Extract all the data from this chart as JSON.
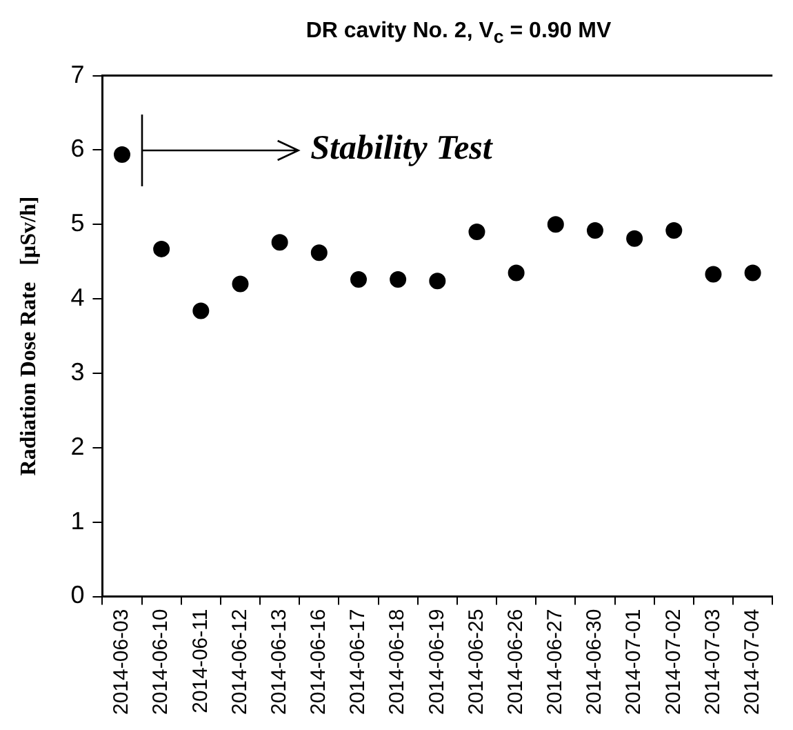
{
  "chart_data": {
    "type": "scatter",
    "title": "DR cavity No. 2,  V$_{c}$ = 0.90 MV",
    "ylabel": "Radiation Dose Rate   [μSv/h]",
    "categories": [
      "2014-06-03",
      "2014-06-10",
      "2014-06-11",
      "2014-06-12",
      "2014-06-13",
      "2014-06-16",
      "2014-06-17",
      "2014-06-18",
      "2014-06-19",
      "2014-06-25",
      "2014-06-26",
      "2014-06-27",
      "2014-06-30",
      "2014-07-01",
      "2014-07-02",
      "2014-07-03",
      "2014-07-04"
    ],
    "values": [
      5.94,
      4.67,
      3.84,
      4.2,
      4.76,
      4.62,
      4.26,
      4.26,
      4.24,
      4.9,
      4.35,
      5.0,
      4.92,
      4.81,
      4.92,
      4.33,
      4.35
    ],
    "color": "#000000",
    "marker": "circle",
    "ylim": [
      0,
      7
    ],
    "yticks": [
      0,
      1,
      2,
      3,
      4,
      5,
      6,
      7
    ],
    "annotations": [
      "Stability Test"
    ]
  }
}
